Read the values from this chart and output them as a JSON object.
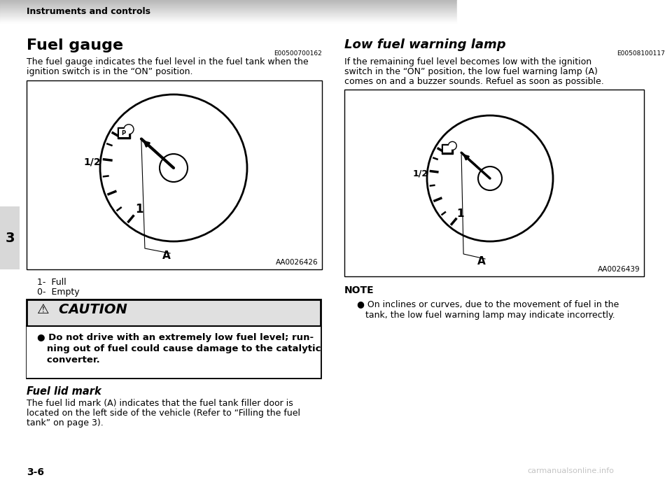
{
  "page_bg": "#ffffff",
  "header_bg": "#b8b8b8",
  "header_text": "Instruments and controls",
  "title_left": "Fuel gauge",
  "title_right": "Low fuel warning lamp",
  "code_left": "E00500700162",
  "code_right": "E00508100117",
  "body_left_l1": "The fuel gauge indicates the fuel level in the fuel tank when the",
  "body_left_l2": "ignition switch is in the “ON” position.",
  "body_right_l1": "If the remaining fuel level becomes low with the ignition",
  "body_right_l2": "switch in the “ON” position, the low fuel warning lamp (A)",
  "body_right_l3": "comes on and a buzzer sounds. Refuel as soon as possible.",
  "label_left_img": "AA0026426",
  "label_right_img": "AA0026439",
  "legend_1": "1-  Full",
  "legend_0": "0-  Empty",
  "caution_title": "⚠  CAUTION",
  "caution_line1": "● Do not drive with an extremely low fuel level; run-",
  "caution_line2": "   ning out of fuel could cause damage to the catalytic",
  "caution_line3": "   converter.",
  "fuel_lid_title": "Fuel lid mark",
  "fuel_lid_l1": "The fuel lid mark (A) indicates that the fuel tank filler door is",
  "fuel_lid_l2": "located on the left side of the vehicle (Refer to “Filling the fuel",
  "fuel_lid_l3": "tank” on page 3).",
  "page_number": "3-6",
  "section_num": "3",
  "note_title": "NOTE",
  "note_l1": "● On inclines or curves, due to the movement of fuel in the",
  "note_l2": "   tank, the low fuel warning lamp may indicate incorrectly.",
  "watermark": "carmanualsonline.info"
}
